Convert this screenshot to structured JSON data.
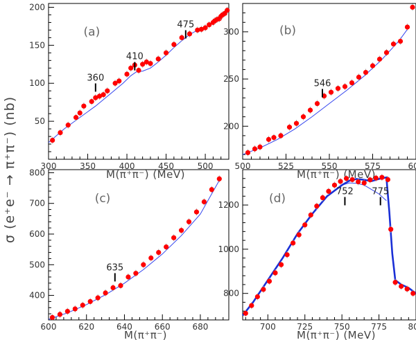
{
  "figure": {
    "ylabel": "σ (e⁺e⁻ → π⁺π⁻) (nb)",
    "colors": {
      "points": "#ff0000",
      "curve": "#3344ee",
      "thick_curve": "#1a2fd6",
      "frame": "#000000"
    }
  },
  "chart_data": [
    {
      "id": "a",
      "type": "scatter",
      "panel_label": "(a)",
      "xlabel": "M(π⁺π⁻)  (MeV)",
      "xlim": [
        300,
        530
      ],
      "ylim": [
        0,
        205
      ],
      "xticks": [
        300,
        350,
        400,
        450,
        500
      ],
      "yticks": [
        50,
        100,
        150,
        200
      ],
      "annotations": [
        {
          "text": "360",
          "x": 360,
          "y": 98
        },
        {
          "text": "410",
          "x": 410,
          "y": 126
        },
        {
          "text": "475",
          "x": 475,
          "y": 168
        }
      ],
      "series": [
        {
          "kind": "points",
          "x": [
            305,
            315,
            325,
            335,
            340,
            345,
            355,
            360,
            365,
            370,
            375,
            385,
            390,
            400,
            405,
            410,
            415,
            420,
            425,
            430,
            440,
            450,
            460,
            470,
            480,
            490,
            495,
            500,
            505,
            510,
            512,
            515,
            518,
            520,
            522,
            525,
            528
          ],
          "y": [
            25,
            35,
            45,
            55,
            61,
            70,
            76,
            81,
            83,
            85,
            90,
            100,
            103,
            112,
            120,
            124,
            117,
            125,
            128,
            126,
            132,
            140,
            151,
            160,
            165,
            170,
            171,
            173,
            177,
            180,
            182,
            184,
            185,
            188,
            190,
            192,
            196
          ]
        },
        {
          "kind": "line",
          "x": [
            300,
            320,
            340,
            360,
            380,
            395,
            405,
            412,
            420,
            430,
            440,
            450,
            460,
            470,
            480,
            490,
            500,
            505,
            510,
            515,
            520,
            525,
            530
          ],
          "y": [
            22,
            40,
            55,
            70,
            87,
            100,
            110,
            115,
            116,
            120,
            128,
            137,
            147,
            156,
            164,
            170,
            174,
            176,
            179,
            182,
            186,
            190,
            195
          ]
        }
      ]
    },
    {
      "id": "b",
      "type": "scatter",
      "panel_label": "(b)",
      "xlabel": "M(π⁺π⁻)  (MeV)",
      "xlim": [
        500,
        600
      ],
      "ylim": [
        165,
        330
      ],
      "xticks": [
        500,
        525,
        550,
        575,
        600
      ],
      "yticks": [
        200,
        250,
        300
      ],
      "annotations": [
        {
          "text": "546",
          "x": 546,
          "y": 238
        }
      ],
      "series": [
        {
          "kind": "points",
          "x": [
            503,
            507,
            510,
            515,
            518,
            522,
            527,
            531,
            535,
            539,
            543,
            547,
            551,
            555,
            559,
            563,
            567,
            571,
            575,
            579,
            583,
            587,
            591,
            595,
            598
          ],
          "y": [
            172,
            176,
            178,
            186,
            188,
            190,
            199,
            203,
            210,
            217,
            224,
            232,
            236,
            240,
            242,
            246,
            252,
            257,
            264,
            271,
            278,
            287,
            290,
            305,
            326
          ]
        },
        {
          "kind": "line",
          "x": [
            500,
            510,
            520,
            530,
            540,
            550,
            560,
            570,
            580,
            590,
            596
          ],
          "y": [
            170,
            177,
            186,
            197,
            210,
            224,
            238,
            253,
            270,
            290,
            305
          ]
        }
      ]
    },
    {
      "id": "c",
      "type": "scatter",
      "panel_label": "(c)",
      "xlabel": "M(π⁺π⁻)",
      "xlim": [
        600,
        695
      ],
      "ylim": [
        320,
        810
      ],
      "xticks": [
        600,
        620,
        640,
        660,
        680
      ],
      "yticks": [
        400,
        500,
        600,
        700,
        800
      ],
      "annotations": [
        {
          "text": "635",
          "x": 635,
          "y": 468
        }
      ],
      "series": [
        {
          "kind": "points",
          "x": [
            602,
            606,
            610,
            614,
            618,
            622,
            626,
            630,
            634,
            638,
            642,
            646,
            650,
            654,
            658,
            662,
            666,
            670,
            674,
            678,
            682,
            686,
            690
          ],
          "y": [
            328,
            338,
            348,
            356,
            368,
            380,
            392,
            408,
            425,
            432,
            460,
            472,
            500,
            522,
            540,
            558,
            588,
            612,
            640,
            672,
            705,
            745,
            780
          ]
        },
        {
          "kind": "line",
          "x": [
            600,
            610,
            620,
            630,
            640,
            650,
            660,
            670,
            680,
            690
          ],
          "y": [
            322,
            343,
            370,
            402,
            440,
            484,
            535,
            595,
            665,
            775
          ]
        }
      ]
    },
    {
      "id": "d",
      "type": "scatter",
      "panel_label": "(d)",
      "xlabel": "M(π⁺π⁻)  (MeV)",
      "xlim": [
        683,
        800
      ],
      "ylim": [
        680,
        1360
      ],
      "xticks": [
        700,
        725,
        750,
        775,
        800
      ],
      "yticks": [
        800,
        1000,
        1200
      ],
      "annotations": [
        {
          "text": "752",
          "x": 752,
          "y": 1230
        },
        {
          "text": "775",
          "x": 776,
          "y": 1230
        }
      ],
      "series": [
        {
          "kind": "points",
          "x": [
            685,
            689,
            693,
            697,
            701,
            705,
            709,
            713,
            717,
            721,
            725,
            729,
            733,
            737,
            741,
            745,
            749,
            753,
            757,
            761,
            765,
            769,
            773,
            777,
            781,
            783,
            786,
            790,
            794,
            798
          ],
          "y": [
            710,
            745,
            785,
            818,
            855,
            893,
            930,
            975,
            1028,
            1065,
            1110,
            1155,
            1195,
            1233,
            1262,
            1290,
            1307,
            1320,
            1315,
            1305,
            1300,
            1314,
            1322,
            1325,
            1315,
            1090,
            850,
            832,
            820,
            800
          ]
        },
        {
          "kind": "line",
          "x": [
            683,
            690,
            700,
            710,
            720,
            730,
            740,
            750,
            755,
            760,
            765,
            770,
            775,
            780
          ],
          "y": [
            700,
            760,
            860,
            960,
            1070,
            1160,
            1240,
            1290,
            1300,
            1298,
            1290,
            1270,
            1250,
            1220
          ]
        },
        {
          "kind": "thick",
          "x": [
            683,
            690,
            700,
            710,
            720,
            730,
            740,
            750,
            755,
            760,
            765,
            770,
            775,
            780,
            782,
            784,
            786,
            790,
            795,
            800
          ],
          "y": [
            700,
            760,
            860,
            960,
            1070,
            1160,
            1240,
            1290,
            1310,
            1318,
            1314,
            1308,
            1318,
            1325,
            1170,
            980,
            860,
            840,
            825,
            800
          ]
        }
      ]
    }
  ]
}
